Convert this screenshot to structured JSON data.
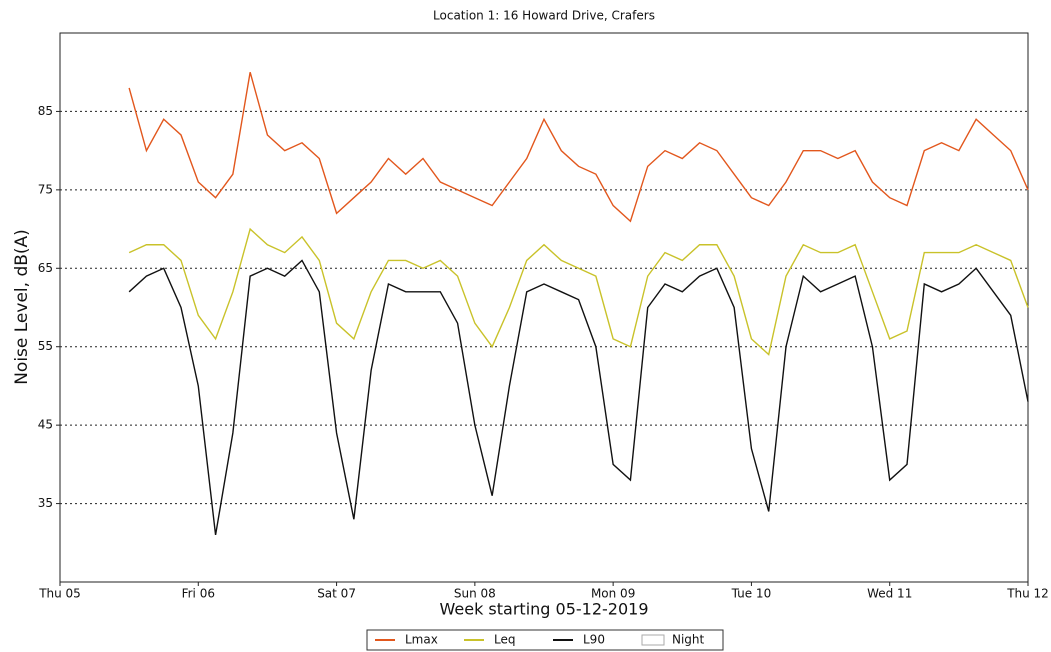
{
  "chart_data": {
    "type": "line",
    "title": "Location 1: 16 Howard Drive, Crafers",
    "x_label": "Week starting 05-12-2019",
    "y_label": "Noise Level, dB(A)",
    "x": [
      0.5,
      0.625,
      0.75,
      0.875,
      1,
      1.125,
      1.25,
      1.375,
      1.5,
      1.625,
      1.75,
      1.875,
      2,
      2.125,
      2.25,
      2.375,
      2.5,
      2.625,
      2.75,
      2.875,
      3,
      3.125,
      3.25,
      3.375,
      3.5,
      3.625,
      3.75,
      3.875,
      4,
      4.125,
      4.25,
      4.375,
      4.5,
      4.625,
      4.75,
      4.875,
      5,
      5.125,
      5.25,
      5.375,
      5.5,
      5.625,
      5.75,
      5.875,
      6,
      6.125,
      6.25,
      6.375,
      6.5,
      6.625,
      6.75,
      6.875,
      7
    ],
    "series": [
      {
        "name": "Lmax",
        "color": "#e2571d",
        "values": [
          88,
          80,
          84,
          82,
          76,
          74,
          77,
          90,
          82,
          80,
          81,
          79,
          72,
          74,
          76,
          79,
          77,
          79,
          76,
          75,
          74,
          73,
          76,
          79,
          84,
          80,
          78,
          77,
          73,
          71,
          78,
          80,
          79,
          81,
          80,
          77,
          74,
          73,
          76,
          80,
          80,
          79,
          80,
          76,
          74,
          73,
          80,
          81,
          80,
          84,
          82,
          80,
          75
        ]
      },
      {
        "name": "Leq",
        "color": "#c9c22a",
        "values": [
          67,
          68,
          68,
          66,
          59,
          56,
          62,
          70,
          68,
          67,
          69,
          66,
          58,
          56,
          62,
          66,
          66,
          65,
          66,
          64,
          58,
          55,
          60,
          66,
          68,
          66,
          65,
          64,
          56,
          55,
          64,
          67,
          66,
          68,
          68,
          64,
          56,
          54,
          64,
          68,
          67,
          67,
          68,
          62,
          56,
          57,
          67,
          67,
          67,
          68,
          67,
          66,
          60
        ]
      },
      {
        "name": "L90",
        "color": "#111111",
        "values": [
          62,
          64,
          65,
          60,
          50,
          31,
          44,
          64,
          65,
          64,
          66,
          62,
          44,
          33,
          52,
          63,
          62,
          62,
          62,
          58,
          45,
          36,
          50,
          62,
          63,
          62,
          61,
          55,
          40,
          38,
          60,
          63,
          62,
          64,
          65,
          60,
          42,
          34,
          55,
          64,
          62,
          63,
          64,
          55,
          38,
          40,
          63,
          62,
          63,
          65,
          62,
          59,
          48
        ]
      }
    ],
    "xlim": [
      0,
      7
    ],
    "xticks": [
      {
        "value": 0,
        "label": "Thu 05"
      },
      {
        "value": 1,
        "label": "Fri 06"
      },
      {
        "value": 2,
        "label": "Sat 07"
      },
      {
        "value": 3,
        "label": "Sun 08"
      },
      {
        "value": 4,
        "label": "Mon 09"
      },
      {
        "value": 5,
        "label": "Tue 10"
      },
      {
        "value": 6,
        "label": "Wed 11"
      },
      {
        "value": 7,
        "label": "Thu 12"
      }
    ],
    "ylim": [
      25,
      95
    ],
    "yticks": [
      35,
      45,
      55,
      65,
      75,
      85
    ],
    "grid": true,
    "legend": {
      "position": "bottom",
      "extra": [
        "Night"
      ]
    }
  }
}
